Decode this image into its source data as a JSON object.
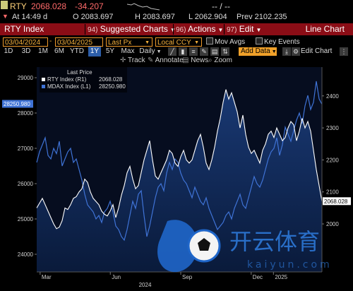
{
  "ticker": {
    "symbol": "RTY",
    "last": "2068.028",
    "change": "-34.207",
    "dashes": "-- / --"
  },
  "quote": {
    "time": "At 14:49 d",
    "open": "O 2083.697",
    "high": "H 2083.697",
    "low": "L 2062.904",
    "prev": "Prev 2102.235"
  },
  "menu": {
    "title": "RTY Index",
    "item1_num": "94)",
    "item1": "Suggested Charts",
    "item2_num": "96)",
    "item2": "Actions",
    "item3_num": "97)",
    "item3": "Edit",
    "right": "Line Chart"
  },
  "inputs": {
    "start": "03/04/2024",
    "end": "03/04/2025",
    "field": "Last Px",
    "currency": "Local CCY",
    "mov_avgs": "Mov Avgs",
    "key_events": "Key Events"
  },
  "periods": [
    "1D",
    "3D",
    "1M",
    "6M",
    "YTD",
    "1Y",
    "5Y",
    "Max"
  ],
  "selected_period": "1Y",
  "frequency": "Daily",
  "add_data": "Add Data",
  "edit_chart": "Edit Chart",
  "toolbar": {
    "track": "Track",
    "annotate": "Annotate",
    "news": "News",
    "zoom": "Zoom"
  },
  "colors": {
    "rty": "#ffffff",
    "mdax": "#3f73d6",
    "accent_red": "#8b0d16",
    "accent_orange": "#f5b13c"
  },
  "chart_data": {
    "type": "line",
    "legend_title": "Last Price",
    "series": [
      {
        "name": "RTY Index (R1)",
        "last_value": "2068.028",
        "axis": "right",
        "values": [
          2050,
          2065,
          2080,
          2060,
          2040,
          2020,
          2000,
          1985,
          1990,
          2010,
          2050,
          2045,
          2060,
          2080,
          2085,
          2100,
          2110,
          2140,
          2130,
          2100,
          2080,
          2070,
          2060,
          2040,
          2030,
          2025,
          2040,
          2060,
          2020,
          2050,
          2090,
          2120,
          2160,
          2180,
          2140,
          2110,
          2120,
          2160,
          2200,
          2230,
          2260,
          2200,
          2150,
          2140,
          2160,
          2180,
          2200,
          2230,
          2220,
          2190,
          2180,
          2210,
          2230,
          2200,
          2190,
          2200,
          2230,
          2260,
          2280,
          2240,
          2190,
          2170,
          2200,
          2240,
          2290,
          2330,
          2380,
          2420,
          2390,
          2410,
          2380,
          2350,
          2300,
          2340,
          2280,
          2240,
          2220,
          2230,
          2210,
          2190,
          2230,
          2250,
          2280,
          2290,
          2270,
          2300,
          2280,
          2260,
          2270,
          2300,
          2320,
          2310,
          2260,
          2290,
          2330,
          2300,
          2320,
          2290,
          2230,
          2170,
          2120,
          2070
        ]
      },
      {
        "name": "MDAX Index (L1)",
        "last_value": "28250.980",
        "axis": "left",
        "values": [
          26600,
          26900,
          27100,
          27300,
          26800,
          26700,
          27000,
          26850,
          27200,
          26500,
          26700,
          26900,
          27000,
          26600,
          26700,
          26400,
          26100,
          25700,
          25400,
          25300,
          25200,
          25000,
          25100,
          24900,
          25200,
          25300,
          25500,
          25200,
          24800,
          24700,
          24500,
          24400,
          24700,
          25100,
          25500,
          25300,
          25700,
          25800,
          25100,
          24500,
          24800,
          25200,
          25600,
          25900,
          26000,
          25800,
          26300,
          26600,
          26400,
          26700,
          26600,
          26300,
          26100,
          26000,
          25800,
          25600,
          25900,
          25700,
          25500,
          25400,
          25600,
          25300,
          25100,
          24900,
          24700,
          24800,
          24900,
          25100,
          25200,
          25000,
          25300,
          25500,
          25700,
          25400,
          25300,
          25600,
          25900,
          26200,
          26000,
          25900,
          26100,
          26400,
          26700,
          26900,
          27000,
          27300,
          26800,
          27100,
          27600,
          27400,
          27200,
          27500,
          27800,
          28000,
          27700,
          28200,
          28500,
          28100,
          28300,
          28900,
          28400,
          28250
        ]
      }
    ],
    "left_axis": {
      "ylim": [
        23500,
        29300
      ],
      "ticks": [
        24000,
        25000,
        26000,
        27000,
        28000,
        29000
      ]
    },
    "right_axis": {
      "ylim": [
        1850,
        2490
      ],
      "ticks": [
        2000,
        2100,
        2200,
        2300,
        2400
      ]
    },
    "x_ticks": [
      {
        "label": "Mar",
        "pos": 0.012
      },
      {
        "label": "Jun",
        "pos": 0.258
      },
      {
        "label": "Sep",
        "pos": 0.505
      },
      {
        "label": "Dec",
        "pos": 0.752
      },
      {
        "label": "2025",
        "pos": 0.83
      }
    ],
    "x_year_label": "2024",
    "grid": false,
    "legend": "top-left"
  },
  "watermark": {
    "name": "开云体育",
    "site": "kaiyun.com"
  }
}
